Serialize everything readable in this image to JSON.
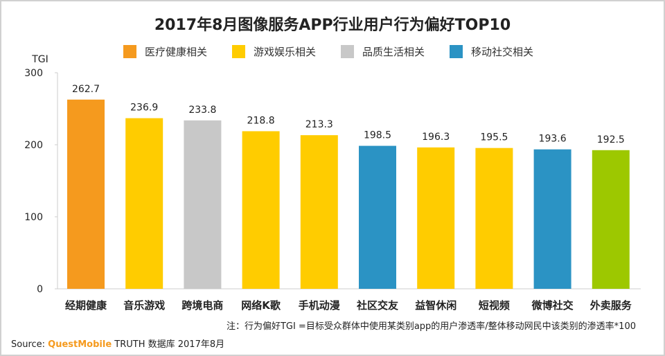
{
  "chart_data": {
    "type": "bar",
    "title": "2017年8月图像服务APP行业用户行为偏好TOP10",
    "ylabel": "TGI",
    "ylim": [
      0,
      300
    ],
    "yticks": [
      0,
      100,
      200,
      300
    ],
    "grid": false,
    "legend_placement": "top",
    "legend": [
      {
        "name": "医疗健康相关",
        "color": "#F59A1E"
      },
      {
        "name": "游戏娱乐相关",
        "color": "#FFCC00"
      },
      {
        "name": "品质生活相关",
        "color": "#C8C8C8"
      },
      {
        "name": "移动社交相关",
        "color": "#2B93C4"
      }
    ],
    "categories": [
      "经期健康",
      "音乐游戏",
      "跨境电商",
      "网络K歌",
      "手机动漫",
      "社区交友",
      "益智休闲",
      "短视频",
      "微博社交",
      "外卖服务"
    ],
    "values": [
      262.7,
      236.9,
      233.8,
      218.8,
      213.3,
      198.5,
      196.3,
      195.5,
      193.6,
      192.5
    ],
    "colors": [
      "#F59A1E",
      "#FFCC00",
      "#C8C8C8",
      "#FFCC00",
      "#FFCC00",
      "#2B93C4",
      "#FFCC00",
      "#FFCC00",
      "#2B93C4",
      "#9DC800"
    ]
  },
  "note": "注：行为偏好TGI =目标受众群体中使用某类别app的用户渗透率/整体移动网民中该类别的渗透率*100",
  "source": {
    "label": "Source:",
    "brand": "QuestMobile",
    "rest": "TRUTH 数据库 2017年8月"
  }
}
